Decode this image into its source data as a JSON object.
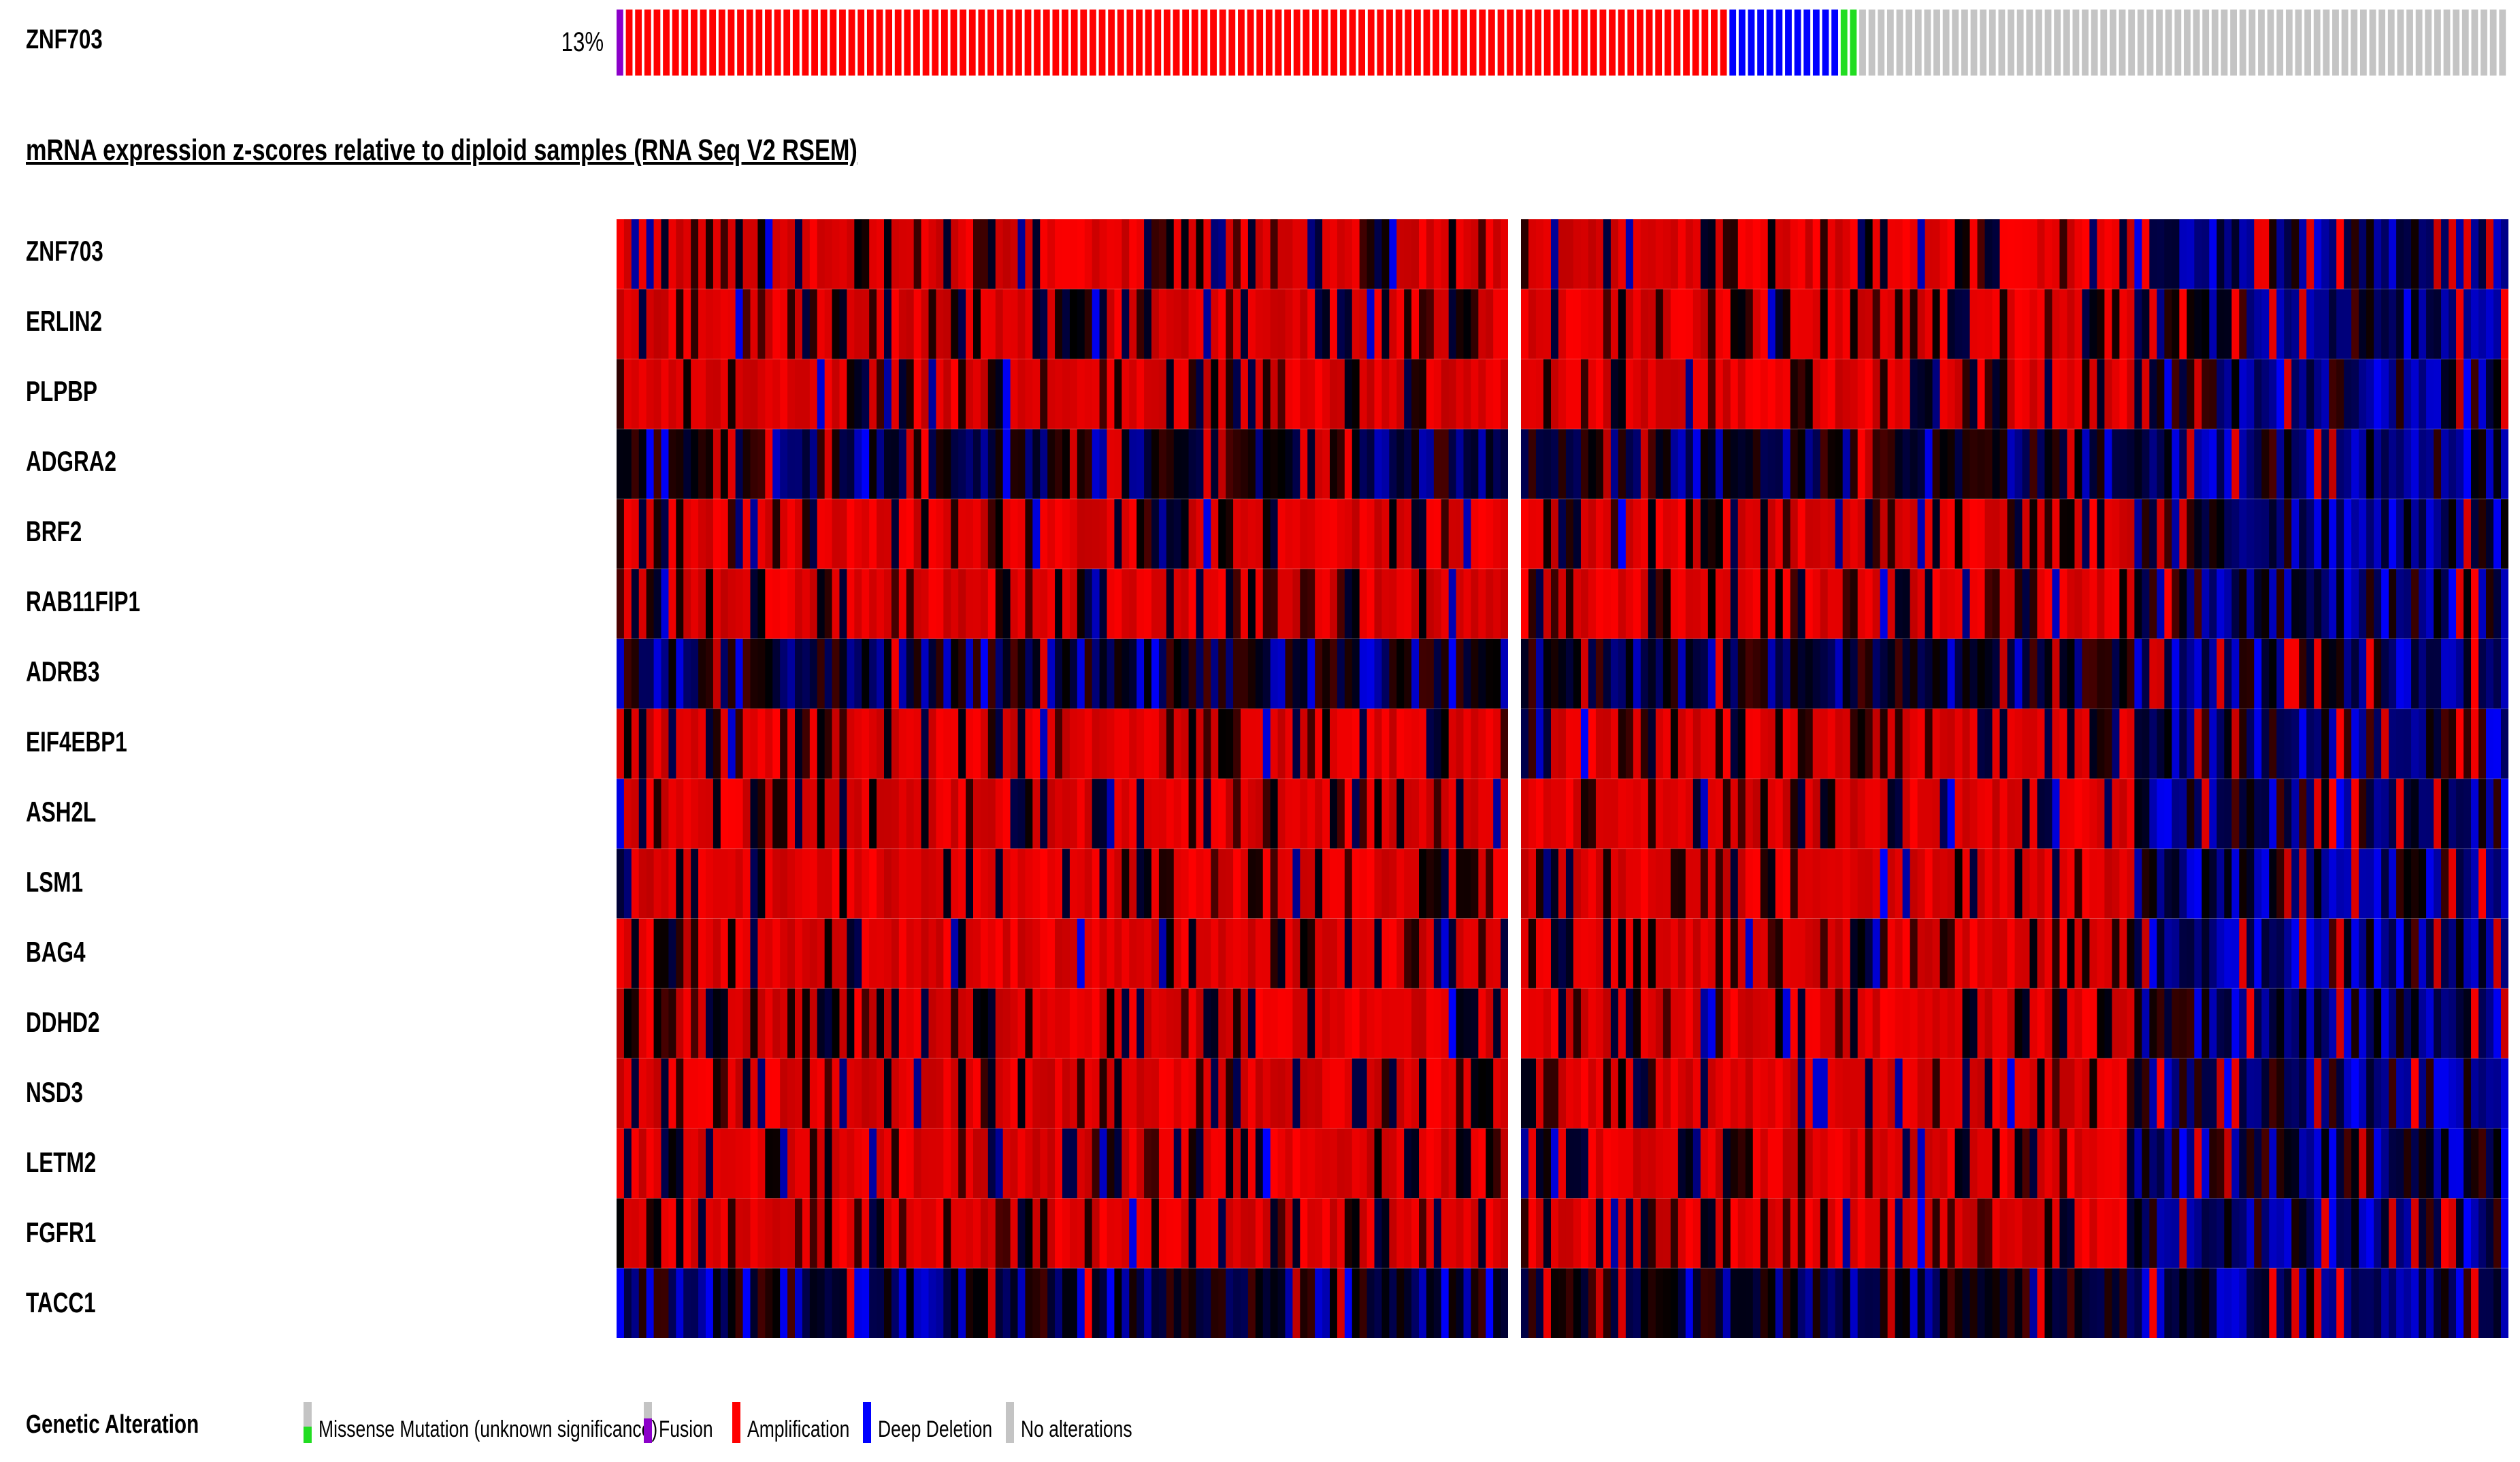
{
  "oncoprint": {
    "gene": "ZNF703",
    "percent_altered": "13%"
  },
  "heatmap": {
    "title": "mRNA expression z-scores relative to diploid samples (RNA Seq V2 RSEM)",
    "genes": [
      "ZNF703",
      "ERLIN2",
      "PLPBP",
      "ADGRA2",
      "BRF2",
      "RAB11FIP1",
      "ADRB3",
      "EIF4EBP1",
      "ASH2L",
      "LSM1",
      "BAG4",
      "DDHD2",
      "NSD3",
      "LETM2",
      "FGFR1",
      "TACC1"
    ]
  },
  "legend": {
    "title": "Genetic Alteration",
    "items": [
      {
        "label": "Missense Mutation (unknown significance)",
        "color": "#22dd22"
      },
      {
        "label": "Fusion",
        "color": "#8b00c9"
      },
      {
        "label": "Amplification",
        "color": "#ff0000"
      },
      {
        "label": "Deep Deletion",
        "color": "#0000ff"
      },
      {
        "label": "No alterations",
        "color": "#c4c4c4"
      }
    ]
  },
  "colors": {
    "amplification": "#ff0000",
    "deep_deletion": "#0000ff",
    "fusion": "#8b00c9",
    "missense": "#22dd22",
    "no_alteration": "#c4c4c4",
    "heat_high": "#ff0000",
    "heat_mid": "#000000",
    "heat_low": "#0000ff"
  }
}
